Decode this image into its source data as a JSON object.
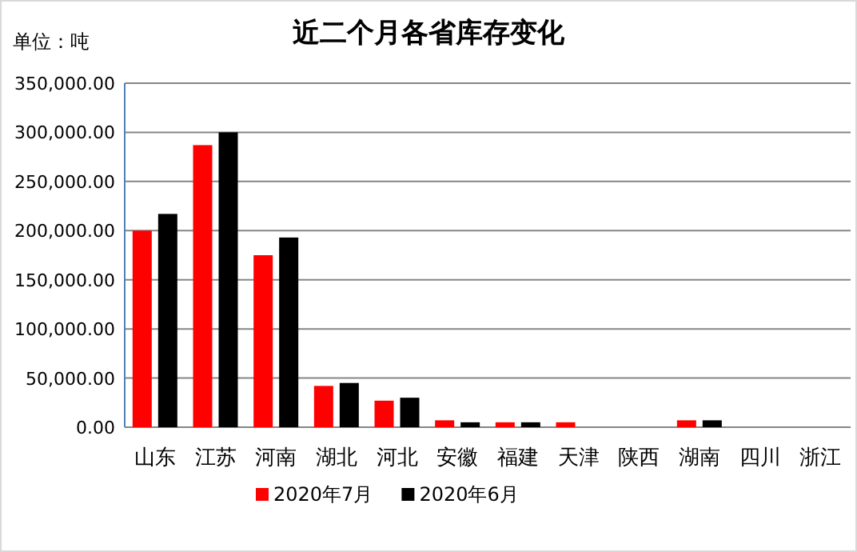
{
  "chart_data": {
    "type": "bar",
    "title": "近二个月各省库存变化",
    "ylabel": "单位：吨",
    "categories": [
      "山东",
      "江苏",
      "河南",
      "湖北",
      "河北",
      "安徽",
      "福建",
      "天津",
      "陕西",
      "湖南",
      "四川",
      "浙江"
    ],
    "series": [
      {
        "name": "2020年7月",
        "color": "#ff0000",
        "values": [
          200000,
          287000,
          175000,
          42000,
          27000,
          7000,
          5000,
          5000,
          0,
          7000,
          0,
          0
        ]
      },
      {
        "name": "2020年6月",
        "color": "#000000",
        "values": [
          217000,
          300000,
          193000,
          45000,
          30000,
          5000,
          5000,
          0,
          0,
          7000,
          0,
          0
        ]
      }
    ],
    "ylim": [
      0,
      350000
    ],
    "yticks": [
      {
        "value": 0,
        "label": "0.00"
      },
      {
        "value": 50000,
        "label": "50,000.00"
      },
      {
        "value": 100000,
        "label": "100,000.00"
      },
      {
        "value": 150000,
        "label": "150,000.00"
      },
      {
        "value": 200000,
        "label": "200,000.00"
      },
      {
        "value": 250000,
        "label": "250,000.00"
      },
      {
        "value": 300000,
        "label": "300,000.00"
      },
      {
        "value": 350000,
        "label": "350,000.00"
      }
    ],
    "grid": "y",
    "legend": "bottom"
  }
}
